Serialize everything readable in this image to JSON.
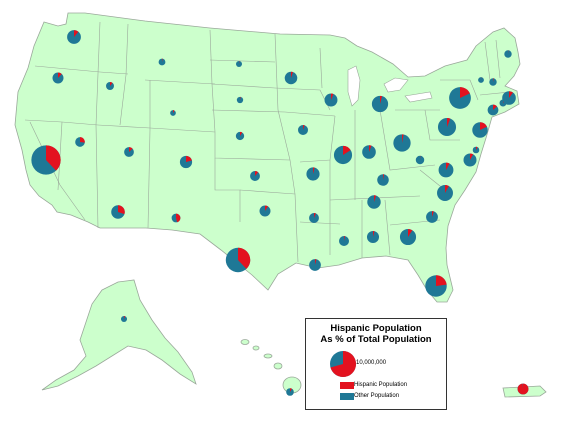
{
  "map": {
    "colors": {
      "land": "#ccffcc",
      "border": "#9aa89a",
      "hispanic": "#e3121f",
      "other": "#1f7896",
      "ocean": "#ffffff"
    },
    "legend": {
      "title_line1": "Hispanic Population",
      "title_line2": "As % of Total Population",
      "size_label": "10,000,000",
      "hispanic_label": "Hispanic Population",
      "other_label": "Other Population"
    },
    "states": [
      {
        "name": "Washington",
        "population_millions": 6.7,
        "hispanic_share": 0.11
      },
      {
        "name": "Oregon",
        "population_millions": 3.8,
        "hispanic_share": 0.12
      },
      {
        "name": "California",
        "population_millions": 37.3,
        "hispanic_share": 0.38
      },
      {
        "name": "Nevada",
        "population_millions": 2.7,
        "hispanic_share": 0.27
      },
      {
        "name": "Idaho",
        "population_millions": 1.6,
        "hispanic_share": 0.11
      },
      {
        "name": "Montana",
        "population_millions": 1.0,
        "hispanic_share": 0.03
      },
      {
        "name": "Wyoming",
        "population_millions": 0.56,
        "hispanic_share": 0.09
      },
      {
        "name": "Utah",
        "population_millions": 2.8,
        "hispanic_share": 0.13
      },
      {
        "name": "Colorado",
        "population_millions": 5.0,
        "hispanic_share": 0.21
      },
      {
        "name": "Arizona",
        "population_millions": 6.4,
        "hispanic_share": 0.3
      },
      {
        "name": "New Mexico",
        "population_millions": 2.1,
        "hispanic_share": 0.46
      },
      {
        "name": "Texas",
        "population_millions": 25.1,
        "hispanic_share": 0.38
      },
      {
        "name": "Oklahoma",
        "population_millions": 3.8,
        "hispanic_share": 0.09
      },
      {
        "name": "Kansas",
        "population_millions": 2.9,
        "hispanic_share": 0.11
      },
      {
        "name": "Nebraska",
        "population_millions": 1.8,
        "hispanic_share": 0.09
      },
      {
        "name": "South Dakota",
        "population_millions": 0.8,
        "hispanic_share": 0.03
      },
      {
        "name": "North Dakota",
        "population_millions": 0.67,
        "hispanic_share": 0.02
      },
      {
        "name": "Minnesota",
        "population_millions": 5.3,
        "hispanic_share": 0.05
      },
      {
        "name": "Iowa",
        "population_millions": 3.0,
        "hispanic_share": 0.05
      },
      {
        "name": "Missouri",
        "population_millions": 6.0,
        "hispanic_share": 0.04
      },
      {
        "name": "Arkansas",
        "population_millions": 2.9,
        "hispanic_share": 0.06
      },
      {
        "name": "Louisiana",
        "population_millions": 4.5,
        "hispanic_share": 0.04
      },
      {
        "name": "Wisconsin",
        "population_millions": 5.7,
        "hispanic_share": 0.06
      },
      {
        "name": "Illinois",
        "population_millions": 12.8,
        "hispanic_share": 0.16
      },
      {
        "name": "Michigan",
        "population_millions": 9.9,
        "hispanic_share": 0.04
      },
      {
        "name": "Indiana",
        "population_millions": 6.5,
        "hispanic_share": 0.06
      },
      {
        "name": "Ohio",
        "population_millions": 11.5,
        "hispanic_share": 0.03
      },
      {
        "name": "Kentucky",
        "population_millions": 4.3,
        "hispanic_share": 0.03
      },
      {
        "name": "Tennessee",
        "population_millions": 6.3,
        "hispanic_share": 0.05
      },
      {
        "name": "Mississippi",
        "population_millions": 3.0,
        "hispanic_share": 0.03
      },
      {
        "name": "Alabama",
        "population_millions": 4.8,
        "hispanic_share": 0.04
      },
      {
        "name": "Georgia",
        "population_millions": 9.7,
        "hispanic_share": 0.09
      },
      {
        "name": "Florida",
        "population_millions": 18.8,
        "hispanic_share": 0.23
      },
      {
        "name": "South Carolina",
        "population_millions": 4.6,
        "hispanic_share": 0.05
      },
      {
        "name": "North Carolina",
        "population_millions": 9.5,
        "hispanic_share": 0.08
      },
      {
        "name": "Virginia",
        "population_millions": 8.0,
        "hispanic_share": 0.08
      },
      {
        "name": "West Virginia",
        "population_millions": 1.9,
        "hispanic_share": 0.01
      },
      {
        "name": "Maryland",
        "population_millions": 5.8,
        "hispanic_share": 0.08
      },
      {
        "name": "Delaware",
        "population_millions": 0.9,
        "hispanic_share": 0.08
      },
      {
        "name": "Pennsylvania",
        "population_millions": 12.7,
        "hispanic_share": 0.06
      },
      {
        "name": "New Jersey",
        "population_millions": 8.8,
        "hispanic_share": 0.18
      },
      {
        "name": "New York",
        "population_millions": 19.4,
        "hispanic_share": 0.18
      },
      {
        "name": "Connecticut",
        "population_millions": 3.6,
        "hispanic_share": 0.13
      },
      {
        "name": "Rhode Island",
        "population_millions": 1.1,
        "hispanic_share": 0.12
      },
      {
        "name": "Massachusetts",
        "population_millions": 6.5,
        "hispanic_share": 0.1
      },
      {
        "name": "Vermont",
        "population_millions": 0.6,
        "hispanic_share": 0.01
      },
      {
        "name": "New Hampshire",
        "population_millions": 1.3,
        "hispanic_share": 0.03
      },
      {
        "name": "Maine",
        "population_millions": 1.3,
        "hispanic_share": 0.01
      },
      {
        "name": "Alaska",
        "population_millions": 0.7,
        "hispanic_share": 0.06
      },
      {
        "name": "Hawaii",
        "population_millions": 1.4,
        "hispanic_share": 0.09
      },
      {
        "name": "Puerto Rico",
        "population_millions": 3.7,
        "hispanic_share": 0.99
      }
    ]
  }
}
